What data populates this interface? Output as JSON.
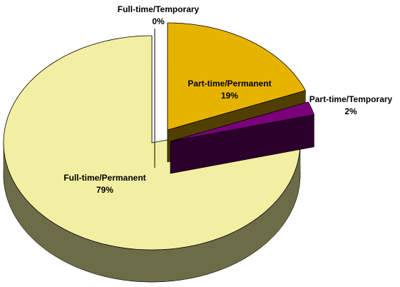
{
  "chart_data": {
    "type": "pie",
    "categories": [
      "Full-time/Temporary",
      "Part-time/Permanent",
      "Part-time/Temporary",
      "Full-time/Permanent"
    ],
    "values": [
      0,
      19,
      2,
      79
    ],
    "value_labels": [
      "0%",
      "19%",
      "2%",
      "79%"
    ],
    "colors": [
      "#ffffff",
      "#e6b400",
      "#7a007a",
      "#f3efa2"
    ]
  }
}
